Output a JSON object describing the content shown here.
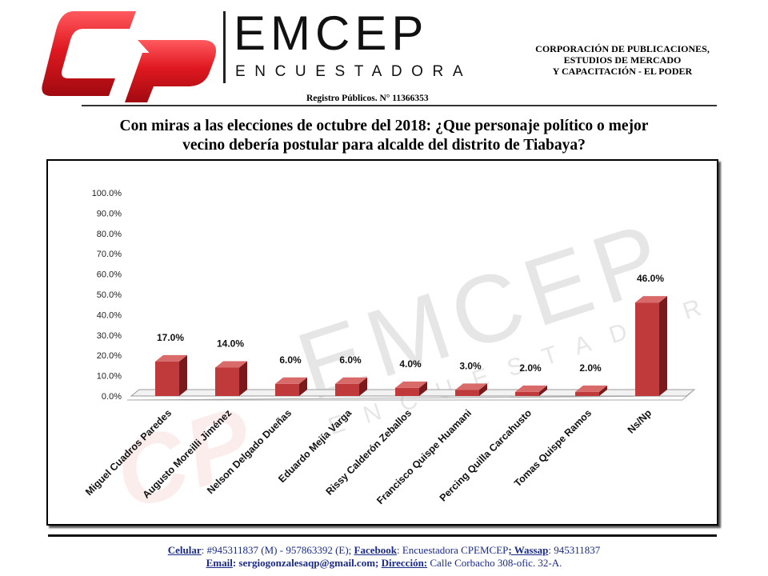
{
  "header": {
    "brand_name": "EMCEP",
    "brand_sub": "ENCUESTADORA",
    "corp_lines": [
      "CORPORACIÓN DE PUBLICACIONES,",
      "ESTUDIOS DE MERCADO",
      "Y CAPACITACIÓN - EL PODER"
    ],
    "registry": "Registro Públicos. N° 11366353"
  },
  "title_lines": [
    "Con miras a las elecciones de octubre del 2018: ¿Que personaje político o mejor",
    "vecino debería postular para alcalde del distrito de Tiabaya?"
  ],
  "watermark": {
    "brand_name": "EMCEP",
    "brand_sub": "ENCUESTADORA",
    "logo_text": "CP"
  },
  "colors": {
    "bar_front": "#c0393b",
    "bar_top": "#d86a6a",
    "bar_side": "#7a1a1c",
    "logo_red": "#d6121b",
    "footer_text": "#1a2a8a"
  },
  "chart_data": {
    "type": "bar",
    "style": "3d-column",
    "categories": [
      "Miguel Cuadros Paredes",
      "Augusto Moreilli Jiménez",
      "Nelson Delgado Dueñas",
      "Eduardo Mejía Varga",
      "Rissy Calderón Zeballos",
      "Francisco Quispe Huamani",
      "Percing Quilla Carcahusto",
      "Tomas Quispe Ramos",
      "Ns/Np"
    ],
    "values": [
      17.0,
      14.0,
      6.0,
      6.0,
      4.0,
      3.0,
      2.0,
      2.0,
      46.0
    ],
    "data_labels": [
      "17.0%",
      "14.0%",
      "6.0%",
      "6.0%",
      "4.0%",
      "3.0%",
      "2.0%",
      "2.0%",
      "46.0%"
    ],
    "y_ticks": [
      "0.0%",
      "10.0%",
      "20.0%",
      "30.0%",
      "40.0%",
      "50.0%",
      "60.0%",
      "70.0%",
      "80.0%",
      "90.0%",
      "100.0%"
    ],
    "ylim": [
      0,
      100
    ],
    "grid": false,
    "legend": "none"
  },
  "footer": {
    "line1": [
      {
        "k": "Celular",
        "v": ": #945311837 (M) - 957863392 (E); "
      },
      {
        "k": "Facebook",
        "v": ": Encuestadora CPEMCEP"
      },
      {
        "k": "; Wassap",
        "v": ": 945311837"
      }
    ],
    "line2": [
      {
        "k": "Email",
        "v": ": sergiogonzalesaqp@gmail.com; ",
        "bold": true
      },
      {
        "k": "Dirección:",
        "v": " Calle Corbacho 308-ofic. 32-A."
      }
    ]
  }
}
